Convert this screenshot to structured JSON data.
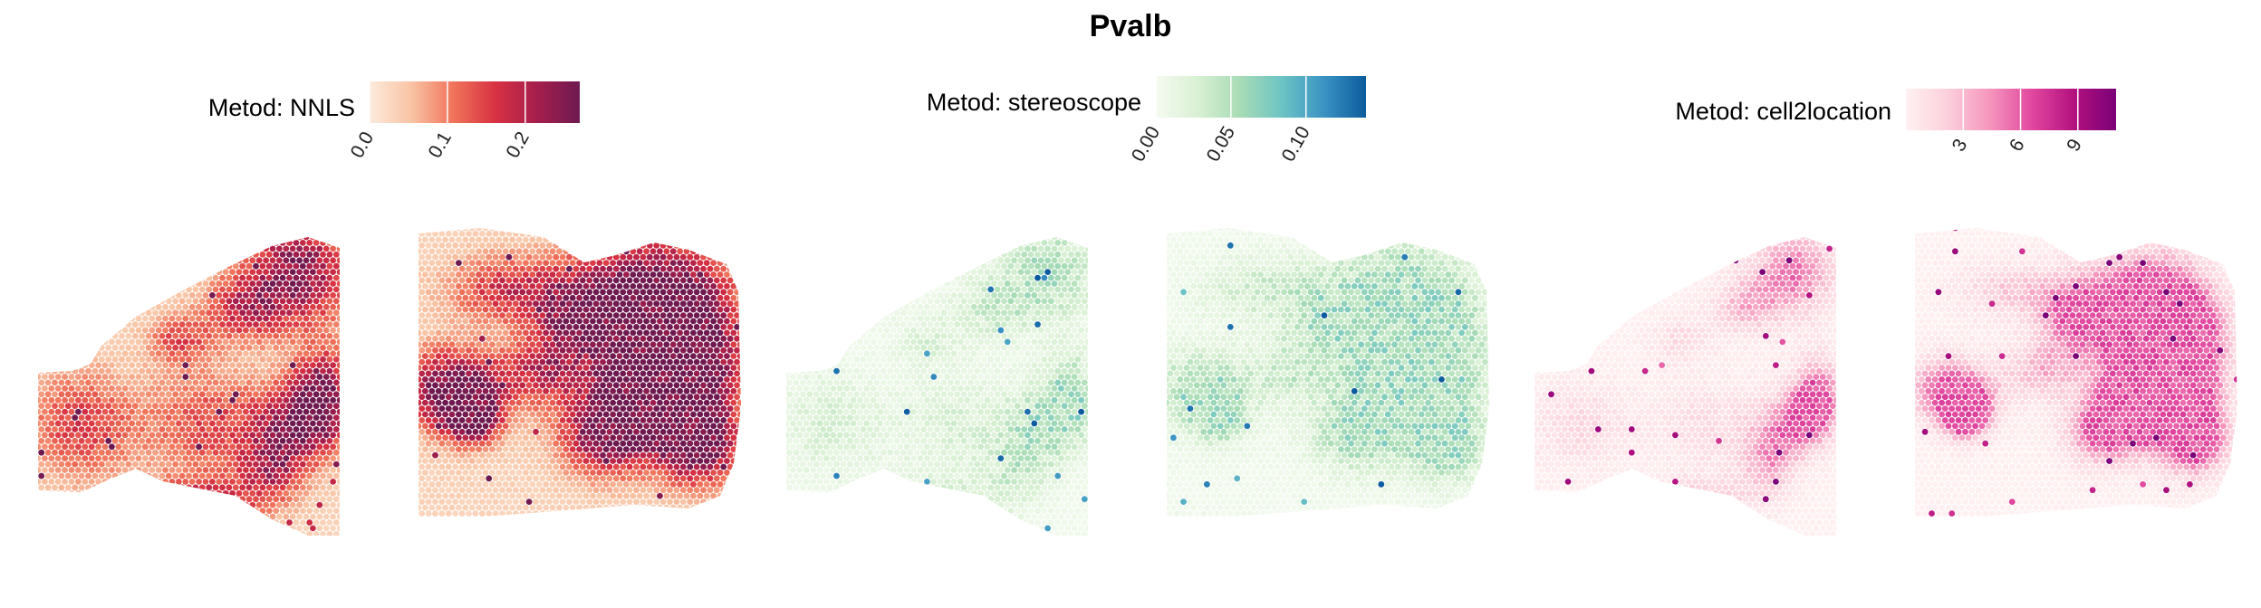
{
  "figure": {
    "title": "Pvalb"
  },
  "chart_data": [
    {
      "type": "heatmap",
      "kind": "spatial-spot-map",
      "gene": "Pvalb",
      "legend_title": "Metod: NNLS",
      "colorscale": [
        "#fdebdc",
        "#f9c3a4",
        "#f0735a",
        "#d73142",
        "#a51e4d",
        "#6e1a51"
      ],
      "colorbar_range": [
        0.0,
        0.27
      ],
      "ticks": [
        0.0,
        0.1,
        0.2
      ],
      "tick_labels": [
        "0.0",
        "0.1",
        "0.2"
      ],
      "sections": [
        "left-section",
        "right-section"
      ]
    },
    {
      "type": "heatmap",
      "kind": "spatial-spot-map",
      "gene": "Pvalb",
      "legend_title": "Metod: stereoscope",
      "colorscale": [
        "#f5fbf1",
        "#d9f0d3",
        "#a8dcb5",
        "#6cc4c4",
        "#3a93c3",
        "#0c5c9d"
      ],
      "colorbar_range": [
        0.0,
        0.14
      ],
      "ticks": [
        0.0,
        0.05,
        0.1
      ],
      "tick_labels": [
        "0.00",
        "0.05",
        "0.10"
      ],
      "sections": [
        "left-section",
        "right-section"
      ]
    },
    {
      "type": "heatmap",
      "kind": "spatial-spot-map",
      "gene": "Pvalb",
      "legend_title": "Metod: cell2location",
      "colorscale": [
        "#fff1f2",
        "#fcd0dc",
        "#f595bd",
        "#e1479f",
        "#b3117f",
        "#7a0177"
      ],
      "colorbar_range": [
        0.0,
        11.0
      ],
      "ticks": [
        3,
        6,
        9
      ],
      "tick_labels": [
        "3",
        "6",
        "9"
      ],
      "sections": [
        "left-section",
        "right-section"
      ]
    }
  ]
}
